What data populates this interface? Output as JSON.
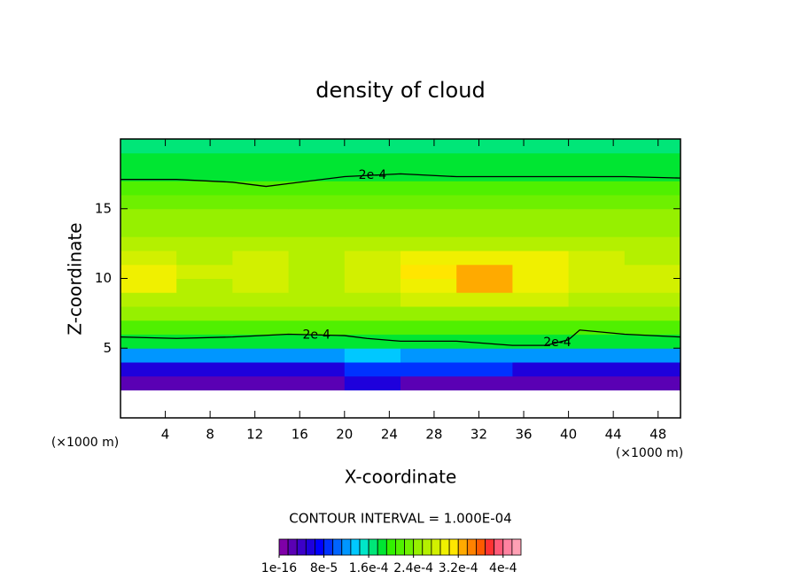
{
  "chart_data": {
    "type": "filled-contour",
    "title": "density of cloud",
    "x_label": "X-coordinate",
    "y_label": "Z-coordinate",
    "x_unit": "(×1000 m)",
    "y_unit": "(×1000 m)",
    "xlim": [
      0,
      50
    ],
    "xticks": [
      4,
      8,
      12,
      16,
      20,
      24,
      28,
      32,
      36,
      40,
      44,
      48
    ],
    "ylim": [
      0,
      20
    ],
    "yticks": [
      5,
      10,
      15
    ],
    "contour_interval": "CONTOUR INTERVAL = 1.000E-04",
    "field": {
      "x": [
        2.5,
        7.5,
        12.5,
        17.5,
        22.5,
        27.5,
        32.5,
        37.5,
        42.5,
        47.5
      ],
      "z": [
        0.5,
        1.5,
        2.5,
        3.5,
        4.5,
        5.5,
        6.5,
        7.5,
        8.5,
        9.5,
        10.5,
        11.5,
        12.5,
        13.5,
        14.5,
        15.5,
        16.5,
        17.5,
        18.5,
        19.5
      ],
      "values": [
        [
          null,
          null,
          null,
          null,
          null,
          null,
          null,
          null,
          null,
          null
        ],
        [
          null,
          null,
          null,
          null,
          null,
          null,
          null,
          null,
          null,
          null
        ],
        [
          3e-05,
          2e-05,
          3e-05,
          2e-05,
          5e-05,
          3e-05,
          3e-05,
          2e-05,
          3e-05,
          3e-05
        ],
        [
          6e-05,
          6e-05,
          6e-05,
          6e-05,
          9e-05,
          9e-05,
          9e-05,
          6e-05,
          6e-05,
          6e-05
        ],
        [
          0.00012,
          0.00012,
          0.00012,
          0.00012,
          0.00013,
          0.00012,
          0.00012,
          0.00012,
          0.00012,
          0.00012
        ],
        [
          0.00018,
          0.00018,
          0.00018,
          0.00018,
          0.00018,
          0.00018,
          0.00018,
          0.00018,
          0.00018,
          0.00018
        ],
        [
          0.00022,
          0.00022,
          0.00022,
          0.00022,
          0.00022,
          0.00022,
          0.00022,
          0.00022,
          0.00022,
          0.00022
        ],
        [
          0.00024,
          0.00024,
          0.00024,
          0.00024,
          0.00025,
          0.00025,
          0.00025,
          0.00024,
          0.00024,
          0.00024
        ],
        [
          0.00026,
          0.00026,
          0.00026,
          0.00026,
          0.00027,
          0.00028,
          0.00028,
          0.00028,
          0.00026,
          0.00026
        ],
        [
          0.00029,
          0.00027,
          0.00028,
          0.00027,
          0.00028,
          0.0003,
          0.00032,
          0.0003,
          0.00028,
          0.00028
        ],
        [
          0.00029,
          0.00028,
          0.00028,
          0.00027,
          0.00028,
          0.00031,
          0.00032,
          0.0003,
          0.00028,
          0.00028
        ],
        [
          0.00028,
          0.00027,
          0.00028,
          0.00027,
          0.00028,
          0.00029,
          0.0003,
          0.00029,
          0.00028,
          0.00027
        ],
        [
          0.00026,
          0.00026,
          0.00026,
          0.00026,
          0.00027,
          0.00027,
          0.00027,
          0.00027,
          0.00026,
          0.00026
        ],
        [
          0.00025,
          0.00025,
          0.00025,
          0.00025,
          0.00025,
          0.00025,
          0.00025,
          0.00025,
          0.00025,
          0.00025
        ],
        [
          0.00024,
          0.00024,
          0.00024,
          0.00024,
          0.00024,
          0.00024,
          0.00024,
          0.00024,
          0.00024,
          0.00024
        ],
        [
          0.00023,
          0.00023,
          0.00023,
          0.00023,
          0.00023,
          0.00023,
          0.00023,
          0.00023,
          0.00023,
          0.00023
        ],
        [
          0.00021,
          0.00021,
          0.00021,
          0.00021,
          0.00021,
          0.00022,
          0.00022,
          0.00021,
          0.00021,
          0.00021
        ],
        [
          0.00019,
          0.00019,
          0.00019,
          0.00019,
          0.00019,
          0.00019,
          0.00019,
          0.00019,
          0.00019,
          0.00019
        ],
        [
          0.00018,
          0.00018,
          0.00018,
          0.00018,
          0.00018,
          0.00018,
          0.00018,
          0.00018,
          0.00018,
          0.00018
        ],
        [
          0.00017,
          0.00017,
          0.00017,
          0.00017,
          0.00017,
          0.00017,
          0.00017,
          0.00017,
          0.00017,
          0.00017
        ]
      ]
    },
    "contours": [
      {
        "level": {
          "value": 0.0002,
          "label": "2e-4"
        },
        "x": [
          0,
          5,
          10,
          13,
          15,
          20,
          25,
          30,
          35,
          40,
          45,
          50
        ],
        "y": [
          17.1,
          17.1,
          16.9,
          16.6,
          16.8,
          17.3,
          17.5,
          17.3,
          17.3,
          17.3,
          17.3,
          17.2
        ]
      },
      {
        "level": {
          "value": 0.0002,
          "label": "2e-4"
        },
        "x": [
          0,
          5,
          10,
          15,
          20,
          22,
          25,
          30,
          35,
          38,
          40,
          41,
          45,
          50
        ],
        "y": [
          5.8,
          5.7,
          5.8,
          6.0,
          5.9,
          5.7,
          5.5,
          5.5,
          5.2,
          5.2,
          5.6,
          6.3,
          6.0,
          5.8
        ]
      }
    ],
    "colorbar": {
      "lim": [
        0,
        0.000432
      ],
      "ticks": [
        {
          "value": 1e-16,
          "label": "1e-16"
        },
        {
          "value": 8e-05,
          "label": "8e-5"
        },
        {
          "value": 0.00016,
          "label": "1.6e-4"
        },
        {
          "value": 0.00024,
          "label": "2.4e-4"
        },
        {
          "value": 0.00032,
          "label": "3.2e-4"
        },
        {
          "value": 0.0004,
          "label": "4e-4"
        }
      ],
      "colors": [
        "#7f00a8",
        "#5a00b4",
        "#3c00c8",
        "#1e00dc",
        "#0000ff",
        "#0032ff",
        "#0064ff",
        "#0096ff",
        "#00c8ff",
        "#00e6c8",
        "#00e678",
        "#00e632",
        "#32f000",
        "#50f000",
        "#6ef000",
        "#96f000",
        "#b4f000",
        "#d2f000",
        "#f0f000",
        "#ffe600",
        "#ffaa00",
        "#ff8200",
        "#ff5a00",
        "#ff3232",
        "#ff5a78",
        "#ff82a0",
        "#ffa0b4"
      ]
    }
  }
}
